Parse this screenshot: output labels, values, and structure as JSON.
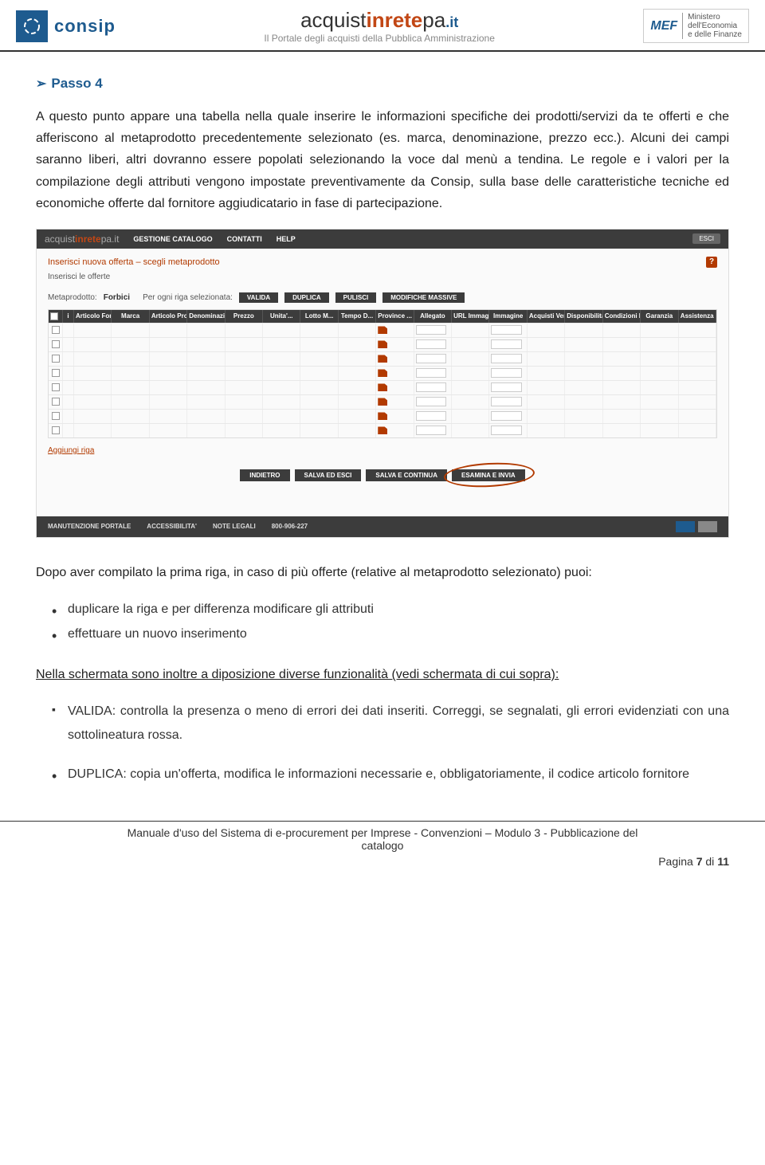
{
  "header": {
    "consip_text": "consip",
    "acq_prefix": "acquist",
    "acq_in": "inrete",
    "acq_suffix": "pa",
    "acq_it": ".it",
    "acq_subtitle": "Il Portale degli acquisti della Pubblica Amministrazione",
    "mef_badge": "MEF",
    "mef_line1": "Ministero",
    "mef_line2": "dell'Economia",
    "mef_line3": "e delle Finanze"
  },
  "passo": {
    "arrow": "➢",
    "title": "Passo 4"
  },
  "para1": "A questo punto appare una tabella nella quale inserire le informazioni specifiche dei prodotti/servizi da te offerti e che afferiscono al metaprodotto precedentemente selezionato (es. marca, denominazione, prezzo ecc.). Alcuni dei campi saranno liberi, altri dovranno essere popolati selezionando la voce dal menù a tendina. Le regole e i valori per la compilazione degli attributi vengono impostate preventivamente da Consip, sulla base delle caratteristiche tecniche ed economiche offerte dal fornitore aggiudicatario in fase di partecipazione.",
  "screenshot": {
    "logo_prefix": "acquist",
    "logo_in": "inrete",
    "logo_suffix": "pa",
    "logo_it": ".it",
    "nav": [
      "GESTIONE CATALOGO",
      "CONTATTI",
      "HELP"
    ],
    "esci": "ESCI",
    "breadcrumb": "Inserisci nuova offerta – scegli metaprodotto",
    "sub2": "Inserisci le offerte",
    "meta_label": "Metaprodotto:",
    "meta_value": "Forbici",
    "meta_per": "Per ogni riga selezionata:",
    "meta_buttons": [
      "VALIDA",
      "DUPLICA",
      "PULISCI",
      "MODIFICHE MASSIVE"
    ],
    "columns": [
      "Articolo Forn...",
      "Marca",
      "Articolo Pro...",
      "Denominazio...",
      "Prezzo",
      "Unita'...",
      "Lotto M...",
      "Tempo D...",
      "Province ...",
      "Allegato",
      "URL Immagine",
      "Immagine",
      "Acquisti Verdi",
      "Disponibilità...",
      "Condizioni Di...",
      "Garanzia",
      "Assistenza"
    ],
    "aggiungi": "Aggiungi riga",
    "actions": [
      "INDIETRO",
      "SALVA ED ESCI",
      "SALVA E CONTINUA",
      "ESAMINA E INVIA"
    ],
    "footer_links": [
      "MANUTENZIONE PORTALE",
      "ACCESSIBILITA'",
      "NOTE LEGALI"
    ],
    "footer_phone": "800-906-227",
    "row_count": 8
  },
  "para2_intro": "Dopo aver compilato la prima riga, in caso di più offerte (relative al metaprodotto selezionato) puoi:",
  "bullets1": [
    "duplicare la riga e per differenza modificare gli attributi",
    "effettuare un nuovo inserimento"
  ],
  "para3": "Nella schermata sono inoltre a diposizione diverse funzionalità (vedi schermata di cui sopra):",
  "valida_label": "VALIDA",
  "valida_text": ": controlla la presenza o meno di errori dei dati inseriti. Correggi, se segnalati, gli errori evidenziati con una sottolineatura rossa.",
  "duplica_label": "DUPLICA",
  "duplica_text": ": copia un'offerta, modifica le informazioni necessarie e, obbligatoriamente, il codice articolo fornitore",
  "footer": {
    "line1": "Manuale d'uso del Sistema di e-procurement per Imprese - Convenzioni – Modulo 3 - Pubblicazione del",
    "line2": "catalogo",
    "pagina_pre": "Pagina ",
    "pagina_num": "7",
    "pagina_di": " di ",
    "pagina_tot": "11"
  }
}
